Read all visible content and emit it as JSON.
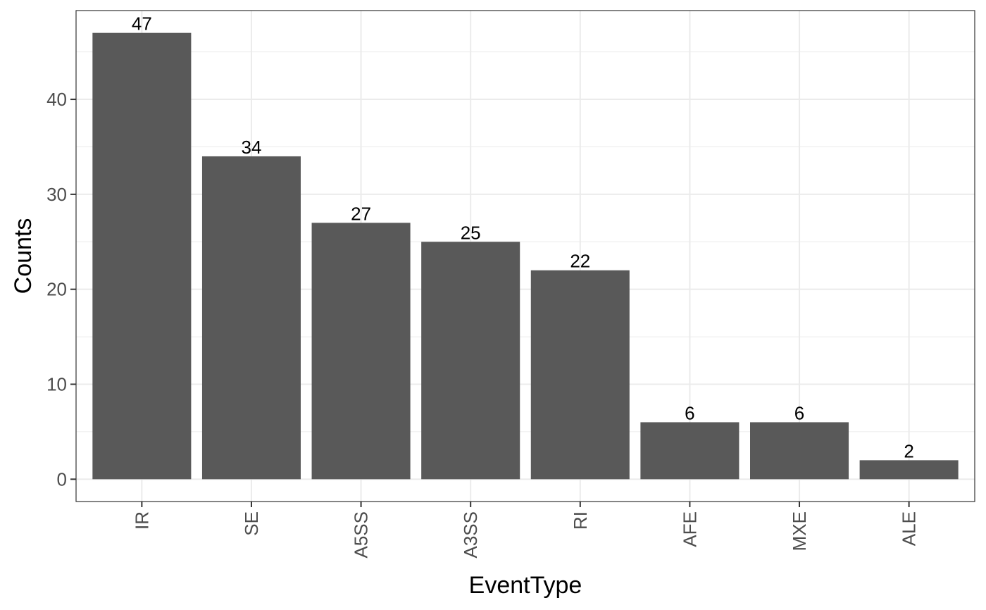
{
  "chart_data": {
    "type": "bar",
    "categories": [
      "IR",
      "SE",
      "A5SS",
      "A3SS",
      "RI",
      "AFE",
      "MXE",
      "ALE"
    ],
    "values": [
      47,
      34,
      27,
      25,
      22,
      6,
      6,
      2
    ],
    "data_labels": [
      "47",
      "34",
      "27",
      "25",
      "22",
      "6",
      "6",
      "2"
    ],
    "xlabel": "EventType",
    "ylabel": "Counts",
    "ylim": [
      -2.35,
      49.35
    ],
    "yticks": [
      0,
      10,
      20,
      30,
      40
    ],
    "ytick_labels": [
      "0",
      "10",
      "20",
      "30",
      "40"
    ],
    "grid": true,
    "x_tick_label_rotation": "vertical",
    "bar_color": "#595959",
    "grid_color": "#ebebeb",
    "panel_border_color": "#333333"
  }
}
